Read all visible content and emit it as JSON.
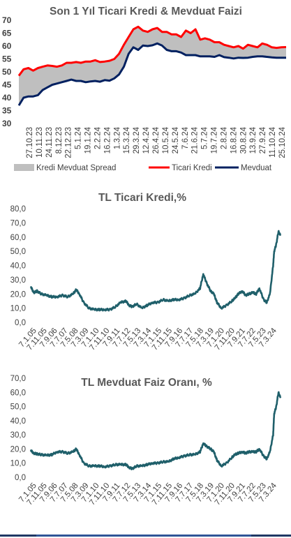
{
  "chart_data": [
    {
      "type": "line",
      "title": "Son 1 Yıl Ticari Kredi & Mevduat Faizi",
      "ylim": [
        30,
        70
      ],
      "yticks": [
        30,
        35,
        40,
        45,
        50,
        55,
        60,
        65,
        70
      ],
      "ytick_labels": [
        "30",
        "35",
        "40",
        "45",
        "50",
        "55",
        "60",
        "65",
        "70"
      ],
      "xtick_labels": [
        "27.10.23",
        "10.11.23",
        "24.11.23",
        "8.12.23",
        "22.12.23",
        "5.1.24",
        "19.1.24",
        "2.2.24",
        "16.2.24",
        "1.3.24",
        "15.3.24",
        "29.3.24",
        "12.4.24",
        "26.4.24",
        "10.5.24",
        "24.5.24",
        "7.6.24",
        "21.6.24",
        "5.7.24",
        "19.7.24",
        "2.8.24",
        "16.8.24",
        "30.8.24",
        "13.9.24",
        "27.9.24",
        "11.10.24",
        "25.10.24"
      ],
      "grid": false,
      "legend_position": "bottom",
      "series": [
        {
          "name": "Kredi Mevduat Spread",
          "kind": "area-between",
          "color": "#bfbfbf"
        },
        {
          "name": "Ticari Kredi",
          "color": "#ff0000",
          "values": [
            48.5,
            51,
            51.5,
            50.5,
            51.5,
            52,
            52.5,
            52.3,
            52,
            52.5,
            53.5,
            53.5,
            53.8,
            53.5,
            54,
            54,
            54.5,
            53.8,
            54,
            54.3,
            55,
            57,
            60.5,
            63.5,
            66.5,
            67.5,
            66,
            65.5,
            66.5,
            67,
            65.5,
            65.5,
            64.5,
            64.5,
            63.5,
            66,
            65,
            66.5,
            62.5,
            63,
            62.5,
            61.5,
            61.5,
            60.5,
            60,
            59.5,
            60,
            59,
            60.5,
            60,
            59.5,
            61,
            60.5,
            59.5,
            59.3,
            59.5,
            59.6
          ]
        },
        {
          "name": "Mevduat",
          "color": "#002060",
          "values": [
            37,
            40,
            40.5,
            40.5,
            41,
            43,
            44,
            45,
            45.5,
            46,
            46.5,
            47,
            46.5,
            46.5,
            46,
            46.3,
            46.5,
            46.2,
            46.8,
            46.6,
            47.5,
            49,
            52,
            57,
            59.5,
            58.5,
            60.2,
            60,
            60.3,
            61,
            60.2,
            58.5,
            58,
            58,
            57.5,
            56.5,
            56.5,
            56.5,
            56,
            56,
            56,
            55.8,
            56.5,
            55.7,
            55.5,
            55.2,
            55.5,
            55.4,
            55.5,
            55.8,
            56,
            56,
            55.8,
            55.6,
            55.5,
            55.5,
            55.5
          ]
        }
      ]
    },
    {
      "type": "line",
      "title": "TL Ticari Kredi,%",
      "ylim": [
        0,
        80
      ],
      "yticks": [
        0,
        10,
        20,
        30,
        40,
        50,
        60,
        70,
        80
      ],
      "ytick_labels": [
        "0,0",
        "10,0",
        "20,0",
        "30,0",
        "40,0",
        "50,0",
        "60,0",
        "70,0",
        "80,0"
      ],
      "xtick_labels": [
        "7.1.05",
        "7.11.05",
        "7.9.06",
        "7.7.07",
        "7.5.08",
        "7.3.09",
        "7.1.10",
        "7.11.10",
        "7.9.11",
        "7.7.12",
        "7.5.13",
        "7.3.14",
        "7.1.15",
        "7.11.15",
        "7.9.16",
        "7.7.17",
        "7.5.18",
        "7.3.19",
        "7.1.20",
        "7.11.20",
        "7.9.21",
        "7.7.22",
        "7.5.23",
        "7.3.24"
      ],
      "grid": false,
      "series": [
        {
          "color": "#1f5f6a",
          "x": [
            0,
            0.3,
            0.6,
            1,
            1.5,
            2,
            2.5,
            3,
            3.5,
            4,
            4.3,
            4.6,
            5,
            5.5,
            6,
            6.5,
            7,
            7.5,
            8,
            8.5,
            9,
            9.3,
            9.6,
            10,
            10.5,
            11,
            11.5,
            12,
            12.5,
            13,
            13.5,
            14,
            14.5,
            15,
            15.5,
            16,
            16.3,
            16.6,
            17,
            17.3,
            17.6,
            18,
            18.5,
            19,
            19.3,
            19.6,
            20,
            20.3,
            20.6,
            21,
            21.3,
            21.6,
            22,
            22.3,
            22.6,
            22.9,
            23,
            23.2,
            23.4,
            23.6
          ],
          "values": [
            25,
            21,
            22,
            20,
            19,
            18,
            18,
            19,
            18,
            20,
            23,
            20,
            14,
            10,
            9,
            9,
            9,
            9,
            11,
            14,
            15,
            12,
            11,
            13,
            10,
            12,
            14,
            14,
            16,
            15,
            16,
            16,
            17,
            19,
            20,
            24,
            34,
            28,
            22,
            20,
            14,
            10,
            12,
            15,
            17,
            20,
            22,
            19,
            20,
            21,
            20,
            24,
            16,
            14,
            20,
            40,
            50,
            55,
            64,
            61
          ]
        }
      ]
    },
    {
      "type": "line",
      "title": "TL  Mevduat Faiz Oranı, %",
      "ylim": [
        0,
        70
      ],
      "yticks": [
        0,
        10,
        20,
        30,
        40,
        50,
        60,
        70
      ],
      "ytick_labels": [
        "0,0",
        "10,0",
        "20,0",
        "30,0",
        "40,0",
        "50,0",
        "60,0",
        "70,0"
      ],
      "xtick_labels": [
        "7.1.05",
        "7.11.05",
        "7.9.06",
        "7.7.07",
        "7.5.08",
        "7.3.09",
        "7.1.10",
        "7.11.10",
        "7.9.11",
        "7.7.12",
        "7.5.13",
        "7.3.14",
        "7.1.15",
        "7.11.15",
        "7.9.16",
        "7.7.17",
        "7.5.18",
        "7.3.19",
        "7.1.20",
        "7.11.20",
        "7.9.21",
        "7.7.22",
        "7.5.23",
        "7.3.24"
      ],
      "grid": false,
      "series": [
        {
          "color": "#1f5f6a",
          "x": [
            0,
            0.3,
            0.6,
            1,
            1.5,
            2,
            2.5,
            3,
            3.5,
            4,
            4.3,
            4.6,
            5,
            5.5,
            6,
            6.5,
            7,
            7.5,
            8,
            8.5,
            9,
            9.3,
            9.6,
            10,
            10.5,
            11,
            11.5,
            12,
            12.5,
            13,
            13.5,
            14,
            14.5,
            15,
            15.5,
            16,
            16.3,
            16.6,
            17,
            17.3,
            17.6,
            18,
            18.5,
            19,
            19.3,
            19.6,
            20,
            20.3,
            20.6,
            21,
            21.3,
            21.6,
            22,
            22.3,
            22.6,
            22.9,
            23,
            23.2,
            23.4,
            23.6
          ],
          "values": [
            19,
            17,
            16.5,
            16,
            15.5,
            16,
            18,
            18,
            17,
            18,
            20,
            16,
            10,
            8,
            8,
            8,
            7.5,
            8,
            9,
            9,
            9,
            7,
            6,
            8,
            8,
            9,
            10,
            10,
            11,
            11,
            13,
            14,
            15,
            16,
            16,
            18,
            24,
            22,
            20,
            18,
            12,
            8,
            10,
            14,
            16,
            17,
            18,
            17,
            18,
            18,
            18,
            20,
            15,
            13,
            18,
            30,
            45,
            50,
            60,
            56
          ]
        }
      ]
    }
  ]
}
